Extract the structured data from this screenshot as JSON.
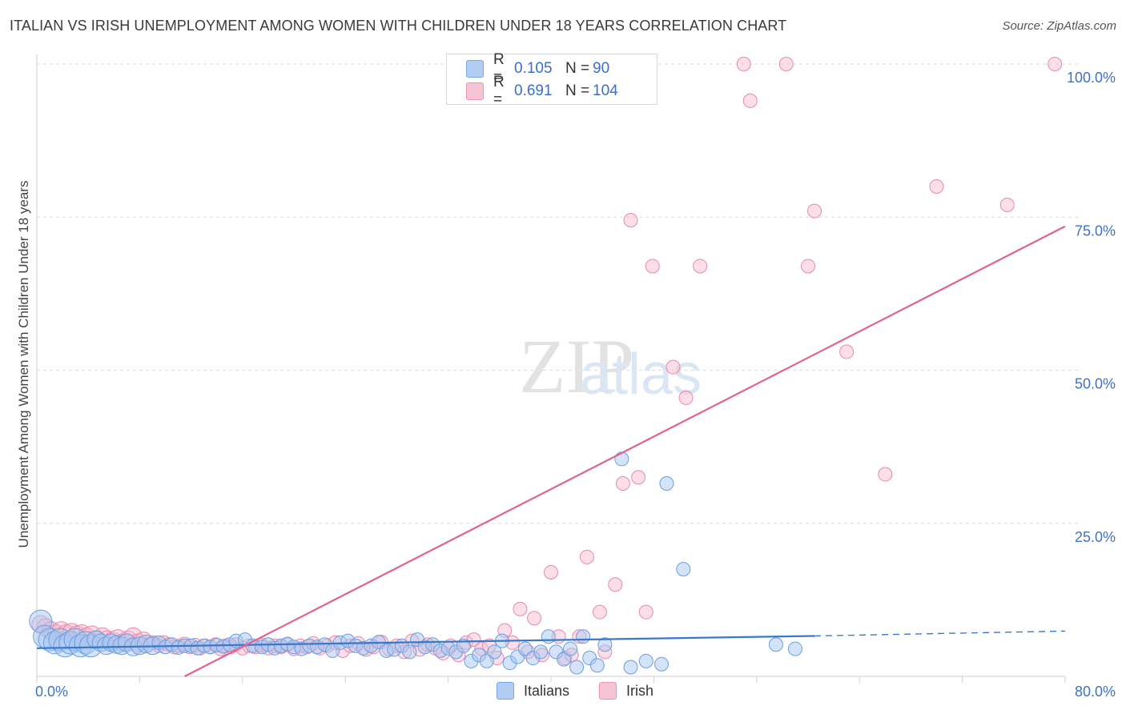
{
  "header": {
    "title": "ITALIAN VS IRISH UNEMPLOYMENT AMONG WOMEN WITH CHILDREN UNDER 18 YEARS CORRELATION CHART",
    "source": "Source: ZipAtlas.com"
  },
  "watermark": {
    "zip": "ZIP",
    "atlas": "atlas"
  },
  "stats": {
    "italians": {
      "r_label": "R = ",
      "r_value": "0.105",
      "n_label": "N = ",
      "n_value": "90"
    },
    "irish": {
      "r_label": "R = ",
      "r_value": "0.691",
      "n_label": "N = ",
      "n_value": "104"
    }
  },
  "legend": {
    "italians": "Italians",
    "irish": "Irish"
  },
  "colors": {
    "italians_fill": "#a9c8f2",
    "italians_stroke": "#6a9ee0",
    "italians_line": "#3a78c9",
    "irish_fill": "#f7bed0",
    "irish_stroke": "#e68aab",
    "irish_line": "#e0638f",
    "tick_text": "#3f72c2",
    "grid": "#dcdcdc"
  },
  "chart_data": {
    "type": "scatter",
    "title": "ITALIAN VS IRISH UNEMPLOYMENT AMONG WOMEN WITH CHILDREN UNDER 18 YEARS CORRELATION CHART",
    "xlabel": "",
    "ylabel": "Unemployment Among Women with Children Under 18 years",
    "xlim": [
      0,
      80
    ],
    "ylim": [
      0,
      100
    ],
    "x_tick_labels": [
      "0.0%",
      "80.0%"
    ],
    "y_ticks": [
      25,
      50,
      75,
      100
    ],
    "y_tick_labels": [
      "25.0%",
      "50.0%",
      "75.0%",
      "100.0%"
    ],
    "grid": true,
    "legend_position": "bottom-center",
    "series": [
      {
        "name": "Italians",
        "r": 0.105,
        "n": 90,
        "trend": {
          "x0": 0,
          "y0": 4.6,
          "x1": 60.5,
          "y1": 6.6,
          "dashed_to_x": 80,
          "dashed_to_y": 7.4
        },
        "points": [
          [
            0.3,
            9.0,
            3
          ],
          [
            0.6,
            6.5,
            3
          ],
          [
            1.0,
            6.0,
            3
          ],
          [
            1.4,
            5.5,
            3
          ],
          [
            1.8,
            6.0,
            3
          ],
          [
            2.2,
            5.0,
            3
          ],
          [
            2.6,
            5.5,
            3
          ],
          [
            3.0,
            6.0,
            3
          ],
          [
            3.4,
            5.0,
            3
          ],
          [
            3.8,
            5.5,
            3
          ],
          [
            4.2,
            5.0,
            3
          ],
          [
            4.6,
            6.0,
            2
          ],
          [
            5.0,
            5.5,
            2
          ],
          [
            5.4,
            5.0,
            2
          ],
          [
            5.8,
            5.5,
            2
          ],
          [
            6.2,
            5.2,
            2
          ],
          [
            6.6,
            5.0,
            2
          ],
          [
            7.0,
            5.5,
            2
          ],
          [
            7.5,
            4.8,
            2
          ],
          [
            8.0,
            5.0,
            2
          ],
          [
            8.5,
            5.3,
            2
          ],
          [
            9.0,
            5.0,
            2
          ],
          [
            9.5,
            5.5,
            1
          ],
          [
            10.0,
            4.8,
            1
          ],
          [
            10.5,
            5.2,
            1
          ],
          [
            11.0,
            4.7,
            1
          ],
          [
            11.5,
            5.0,
            1
          ],
          [
            12.0,
            5.0,
            1
          ],
          [
            12.5,
            4.6,
            1
          ],
          [
            13.0,
            5.0,
            1
          ],
          [
            13.5,
            4.8,
            1
          ],
          [
            14.0,
            5.1,
            1
          ],
          [
            14.5,
            4.9,
            1
          ],
          [
            15.0,
            5.2,
            1
          ],
          [
            15.5,
            5.8,
            1
          ],
          [
            16.2,
            6.0,
            1
          ],
          [
            16.8,
            5.0,
            1
          ],
          [
            17.5,
            4.8,
            1
          ],
          [
            18.0,
            5.2,
            1
          ],
          [
            18.5,
            4.6,
            1
          ],
          [
            19.0,
            5.0,
            1
          ],
          [
            19.5,
            5.3,
            1
          ],
          [
            20.0,
            4.8,
            1
          ],
          [
            20.6,
            4.5,
            1
          ],
          [
            21.2,
            5.0,
            1
          ],
          [
            21.8,
            4.8,
            1
          ],
          [
            22.4,
            5.2,
            1
          ],
          [
            23.0,
            4.2,
            1
          ],
          [
            23.6,
            5.5,
            1
          ],
          [
            24.2,
            5.8,
            1
          ],
          [
            24.8,
            5.0,
            1
          ],
          [
            25.4,
            4.6,
            1
          ],
          [
            26.0,
            5.0,
            1
          ],
          [
            26.6,
            5.6,
            1
          ],
          [
            27.2,
            4.2,
            1
          ],
          [
            27.8,
            4.4,
            1
          ],
          [
            28.4,
            5.0,
            1
          ],
          [
            29.0,
            4.0,
            1
          ],
          [
            29.6,
            6.0,
            1
          ],
          [
            30.2,
            4.8,
            1
          ],
          [
            30.8,
            5.2,
            1
          ],
          [
            31.4,
            4.2,
            1
          ],
          [
            32.0,
            4.6,
            1
          ],
          [
            32.6,
            4.0,
            1
          ],
          [
            33.2,
            5.0,
            1
          ],
          [
            33.8,
            2.5,
            1
          ],
          [
            34.4,
            3.5,
            1
          ],
          [
            35.0,
            2.5,
            1
          ],
          [
            35.6,
            4.0,
            1
          ],
          [
            36.2,
            5.8,
            1
          ],
          [
            36.8,
            2.2,
            1
          ],
          [
            37.4,
            3.2,
            1
          ],
          [
            38.0,
            4.5,
            1
          ],
          [
            38.6,
            3.0,
            1
          ],
          [
            39.2,
            4.0,
            1
          ],
          [
            39.8,
            6.5,
            1
          ],
          [
            40.4,
            4.0,
            1
          ],
          [
            41.0,
            2.8,
            1
          ],
          [
            41.5,
            4.5,
            1
          ],
          [
            42.0,
            1.5,
            1
          ],
          [
            42.5,
            6.5,
            1
          ],
          [
            43.0,
            3.0,
            1
          ],
          [
            43.6,
            1.8,
            1
          ],
          [
            44.2,
            5.2,
            1
          ],
          [
            45.5,
            35.5,
            1
          ],
          [
            46.2,
            1.5,
            1
          ],
          [
            47.4,
            2.5,
            1
          ],
          [
            48.6,
            2.0,
            1
          ],
          [
            49.0,
            31.5,
            1
          ],
          [
            50.3,
            17.5,
            1
          ],
          [
            57.5,
            5.2,
            1
          ],
          [
            59.0,
            4.5,
            1
          ]
        ]
      },
      {
        "name": "Irish",
        "r": 0.691,
        "n": 104,
        "trend": {
          "x0": 11.5,
          "y0": 0,
          "x1": 80,
          "y1": 73.5
        },
        "points": [
          [
            0.3,
            8.5,
            2
          ],
          [
            0.7,
            8.0,
            2
          ],
          [
            1.1,
            7.5,
            2
          ],
          [
            1.5,
            7.0,
            2
          ],
          [
            1.9,
            7.5,
            2
          ],
          [
            2.3,
            7.0,
            2
          ],
          [
            2.7,
            7.2,
            2
          ],
          [
            3.1,
            6.8,
            2
          ],
          [
            3.5,
            7.0,
            2
          ],
          [
            3.9,
            6.5,
            2
          ],
          [
            4.3,
            6.8,
            2
          ],
          [
            4.7,
            6.0,
            2
          ],
          [
            5.1,
            6.5,
            2
          ],
          [
            5.5,
            6.0,
            2
          ],
          [
            5.9,
            5.8,
            2
          ],
          [
            6.3,
            6.2,
            2
          ],
          [
            6.7,
            5.5,
            2
          ],
          [
            7.1,
            6.0,
            2
          ],
          [
            7.5,
            6.5,
            2
          ],
          [
            7.9,
            5.5,
            2
          ],
          [
            8.3,
            5.8,
            2
          ],
          [
            8.7,
            5.2,
            1
          ],
          [
            9.1,
            5.5,
            1
          ],
          [
            9.5,
            5.0,
            1
          ],
          [
            9.9,
            5.5,
            1
          ],
          [
            10.3,
            5.2,
            1
          ],
          [
            10.7,
            4.8,
            1
          ],
          [
            11.1,
            5.0,
            1
          ],
          [
            11.5,
            5.3,
            1
          ],
          [
            11.9,
            4.8,
            1
          ],
          [
            12.3,
            5.1,
            1
          ],
          [
            12.7,
            4.6,
            1
          ],
          [
            13.1,
            5.0,
            1
          ],
          [
            13.5,
            4.8,
            1
          ],
          [
            13.9,
            5.2,
            1
          ],
          [
            14.3,
            4.5,
            1
          ],
          [
            14.7,
            5.0,
            1
          ],
          [
            15.1,
            4.8,
            1
          ],
          [
            15.5,
            5.2,
            1
          ],
          [
            16.0,
            4.6,
            1
          ],
          [
            16.5,
            5.0,
            1
          ],
          [
            17.0,
            4.8,
            1
          ],
          [
            17.5,
            5.1,
            1
          ],
          [
            18.0,
            4.6,
            1
          ],
          [
            18.5,
            5.0,
            1
          ],
          [
            19.0,
            4.8,
            1
          ],
          [
            19.5,
            5.2,
            1
          ],
          [
            20.0,
            4.5,
            1
          ],
          [
            20.5,
            5.0,
            1
          ],
          [
            21.0,
            4.8,
            1
          ],
          [
            21.5,
            5.4,
            1
          ],
          [
            22.0,
            4.6,
            1
          ],
          [
            22.6,
            5.0,
            1
          ],
          [
            23.2,
            5.5,
            1
          ],
          [
            23.8,
            4.2,
            1
          ],
          [
            24.4,
            5.0,
            1
          ],
          [
            25.0,
            5.4,
            1
          ],
          [
            25.6,
            4.4,
            1
          ],
          [
            26.2,
            4.8,
            1
          ],
          [
            26.8,
            5.6,
            1
          ],
          [
            27.4,
            4.5,
            1
          ],
          [
            28.0,
            5.0,
            1
          ],
          [
            28.6,
            4.0,
            1
          ],
          [
            29.2,
            5.8,
            1
          ],
          [
            29.8,
            4.4,
            1
          ],
          [
            30.4,
            5.2,
            1
          ],
          [
            31.0,
            4.6,
            1
          ],
          [
            31.6,
            3.8,
            1
          ],
          [
            32.2,
            5.0,
            1
          ],
          [
            32.8,
            3.5,
            1
          ],
          [
            33.4,
            5.5,
            1
          ],
          [
            34.0,
            6.0,
            1
          ],
          [
            34.6,
            4.5,
            1
          ],
          [
            35.2,
            5.0,
            1
          ],
          [
            35.8,
            3.0,
            1
          ],
          [
            36.4,
            7.5,
            1
          ],
          [
            37.0,
            5.5,
            1
          ],
          [
            37.6,
            11.0,
            1
          ],
          [
            38.2,
            4.0,
            1
          ],
          [
            38.7,
            9.5,
            1
          ],
          [
            39.3,
            3.5,
            1
          ],
          [
            40.0,
            17.0,
            1
          ],
          [
            40.6,
            6.5,
            1
          ],
          [
            41.1,
            3.0,
            1
          ],
          [
            41.6,
            3.5,
            1
          ],
          [
            42.2,
            6.5,
            1
          ],
          [
            42.8,
            19.5,
            1
          ],
          [
            43.8,
            10.5,
            1
          ],
          [
            44.2,
            4.0,
            1
          ],
          [
            45.0,
            15.0,
            1
          ],
          [
            45.6,
            31.5,
            1
          ],
          [
            46.2,
            74.5,
            1
          ],
          [
            46.8,
            32.5,
            1
          ],
          [
            47.4,
            10.5,
            1
          ],
          [
            47.9,
            67.0,
            1
          ],
          [
            49.5,
            50.5,
            1
          ],
          [
            50.5,
            45.5,
            1
          ],
          [
            51.6,
            67.0,
            1
          ],
          [
            55.0,
            100.0,
            1
          ],
          [
            55.5,
            94.0,
            1
          ],
          [
            58.3,
            100.0,
            1
          ],
          [
            60.5,
            76.0,
            1
          ],
          [
            60.0,
            67.0,
            1
          ],
          [
            63.0,
            53.0,
            1
          ],
          [
            66.0,
            33.0,
            1
          ],
          [
            70.0,
            80.0,
            1
          ],
          [
            75.5,
            77.0,
            1
          ],
          [
            79.2,
            100.0,
            1
          ]
        ]
      }
    ]
  }
}
